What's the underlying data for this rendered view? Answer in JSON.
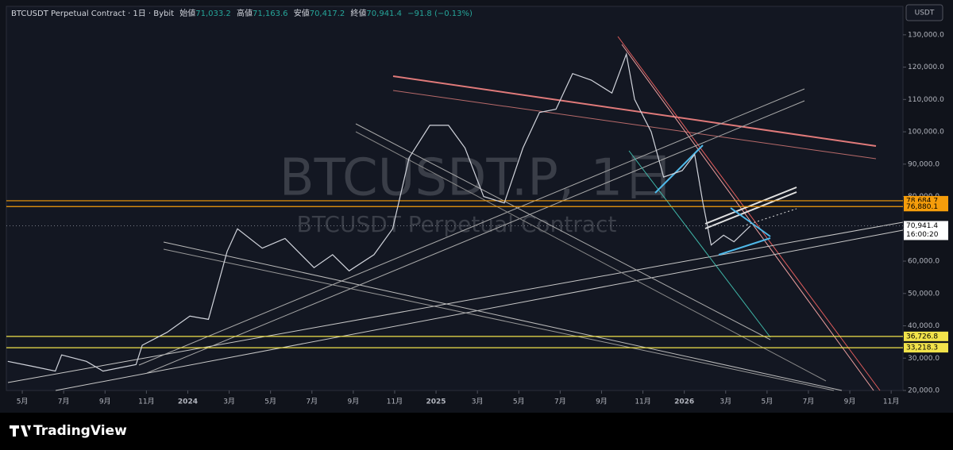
{
  "chart_data": {
    "type": "line",
    "header": {
      "symbol": "BTCUSDT Perpetual Contract · 1日 · Bybit",
      "open_label": "始値",
      "open": "71,033.2",
      "high_label": "高値",
      "high": "71,163.6",
      "low_label": "安値",
      "low": "70,417.2",
      "close_label": "終値",
      "close": "70,941.4",
      "change": "−91.8 (−0.13%)"
    },
    "watermark": "BTCUSDT.P, 1日",
    "watermark_sub": "BTCUSDT Perpetual Contract",
    "currency": "USDT",
    "brand": "TradingView",
    "color": "#d1d4dc",
    "x": [
      -0.7,
      0.46,
      1.6,
      1.9,
      3.1,
      3.9,
      5.5,
      5.8,
      7,
      8.1,
      9,
      9.9,
      10.4,
      11.6,
      12.7,
      14.1,
      15,
      15.8,
      17,
      17.9,
      18.7,
      19.7,
      20.6,
      21.4,
      22.3,
      23.3,
      24.2,
      25,
      25.8,
      26.6,
      27.5,
      28.5,
      29.2,
      29.6,
      30.4,
      31,
      31.9,
      32.5,
      32.9,
      33.3,
      33.9,
      34.4,
      35.2
    ],
    "values": [
      29000,
      27500,
      26000,
      31000,
      29000,
      26000,
      28000,
      34000,
      38000,
      43000,
      42000,
      63000,
      70000,
      64000,
      67000,
      58000,
      62000,
      57000,
      62000,
      70000,
      92000,
      102000,
      102000,
      95000,
      80000,
      78000,
      95000,
      106000,
      107000,
      118000,
      116000,
      112000,
      124000,
      110000,
      100000,
      86000,
      88000,
      93000,
      78000,
      65000,
      68000,
      66000,
      70941.4
    ],
    "levels": [
      {
        "value": 78684.7,
        "label": "78,684.7",
        "color": "#f59d0b"
      },
      {
        "value": 76880.1,
        "label": "76,880.1",
        "color": "#f59d0b"
      },
      {
        "value": 36726.8,
        "label": "36,726.8",
        "color": "#f2e34b"
      },
      {
        "value": 33218.3,
        "label": "33,218.3",
        "color": "#f2e34b"
      }
    ],
    "last": {
      "value": 70941.4,
      "label": "70,941.4",
      "time": "16:00:20"
    },
    "xlim": [
      -0.77,
      42.57
    ],
    "xticks": [
      {
        "value": 0,
        "label": "5月"
      },
      {
        "value": 2,
        "label": "7月"
      },
      {
        "value": 4,
        "label": "9月"
      },
      {
        "value": 6,
        "label": "11月"
      },
      {
        "value": 8,
        "label": "2024"
      },
      {
        "value": 10,
        "label": "3月"
      },
      {
        "value": 12,
        "label": "5月"
      },
      {
        "value": 14,
        "label": "7月"
      },
      {
        "value": 16,
        "label": "9月"
      },
      {
        "value": 18,
        "label": "11月"
      },
      {
        "value": 20,
        "label": "2025"
      },
      {
        "value": 22,
        "label": "3月"
      },
      {
        "value": 24,
        "label": "5月"
      },
      {
        "value": 26,
        "label": "7月"
      },
      {
        "value": 28,
        "label": "9月"
      },
      {
        "value": 30,
        "label": "11月"
      },
      {
        "value": 32,
        "label": "2026"
      },
      {
        "value": 34,
        "label": "3月"
      },
      {
        "value": 36,
        "label": "5月"
      },
      {
        "value": 38,
        "label": "7月"
      },
      {
        "value": 40,
        "label": "9月"
      },
      {
        "value": 42,
        "label": "11月"
      }
    ],
    "ylim": [
      20000,
      138800
    ],
    "yticks": [
      {
        "value": 130000,
        "label": "130,000.0"
      },
      {
        "value": 120000,
        "label": "120,000.0"
      },
      {
        "value": 110000,
        "label": "110,000.0"
      },
      {
        "value": 100000,
        "label": "100,000.0"
      },
      {
        "value": 90000,
        "label": "90,000.0"
      },
      {
        "value": 80000,
        "label": "80,000.0"
      },
      {
        "value": 70000,
        "label": "70,000.0"
      },
      {
        "value": 60000,
        "label": "60,000.0"
      },
      {
        "value": 50000,
        "label": "50,000.0"
      },
      {
        "value": 40000,
        "label": "40,000.0"
      },
      {
        "value": 30000,
        "label": "30,000.0"
      },
      {
        "value": 20000,
        "label": "20,000.0"
      }
    ]
  }
}
